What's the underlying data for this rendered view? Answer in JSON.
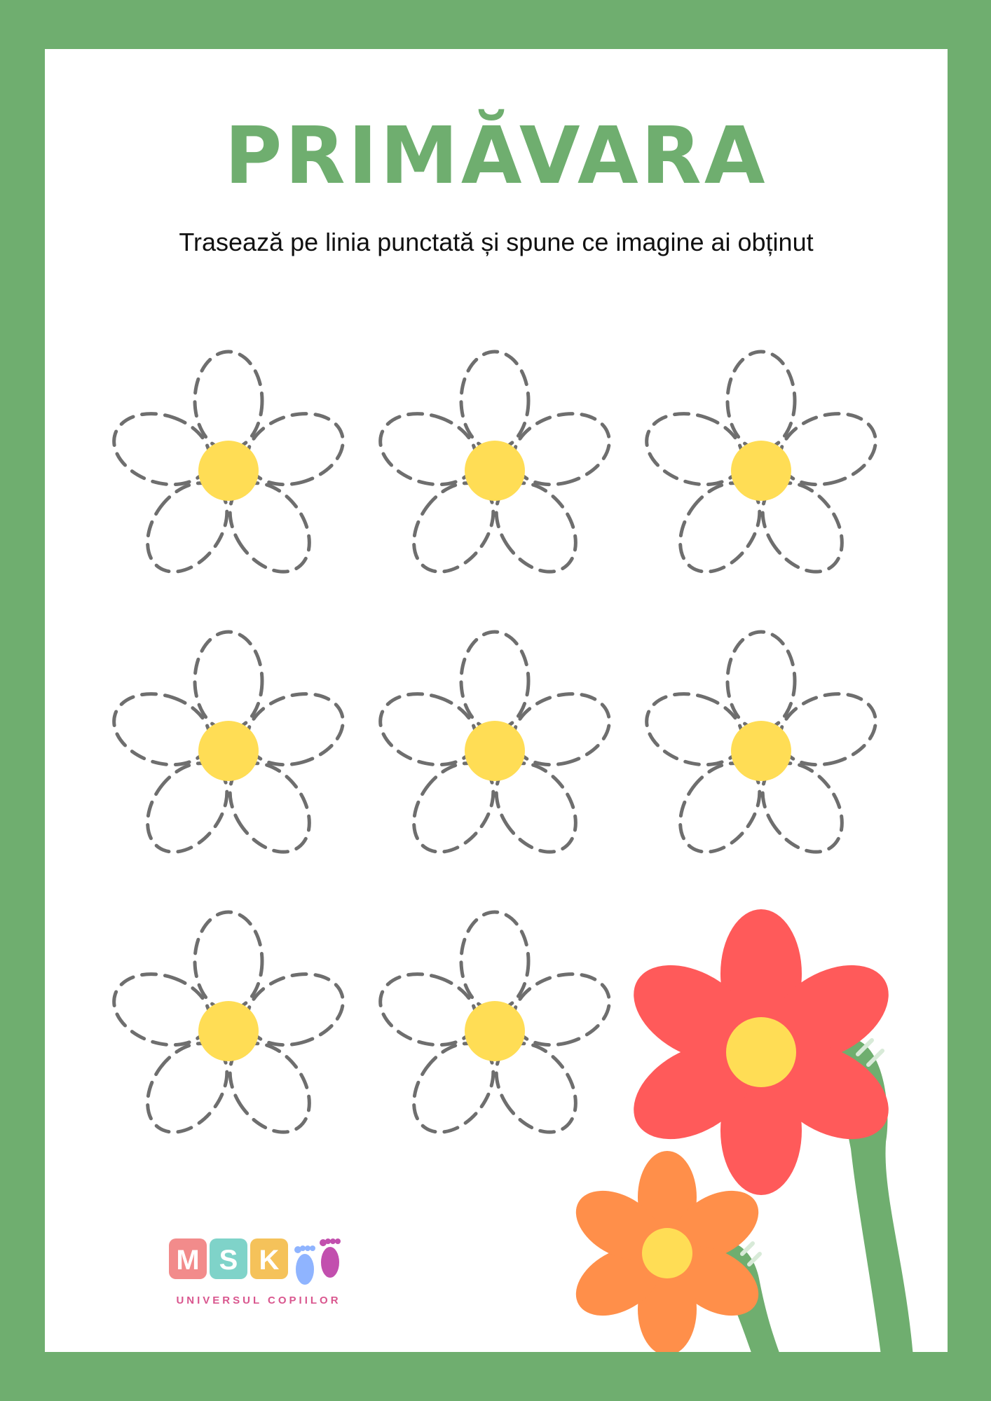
{
  "worksheet": {
    "title": "PRIMĂVARA",
    "instruction": "Trasează pe linia punctată și spune ce imagine ai obținut"
  },
  "tracing_flowers": {
    "count": 8,
    "center_color": "#ffdd55",
    "dash_color": "#6e6e6e"
  },
  "decoration": {
    "large_flower_color": "#ff5a5a",
    "small_flower_color": "#ff8f4a",
    "stem_color": "#6fae6f",
    "center_color": "#ffdd55"
  },
  "logo": {
    "letters": [
      "M",
      "S",
      "K"
    ],
    "letter_colors": [
      "#f28b8b",
      "#7fd3c9",
      "#f5c25a"
    ],
    "tagline": "UNIVERSUL COPIILOR"
  },
  "colors": {
    "frame": "#6fae6f",
    "sheet": "#ffffff",
    "title": "#6fae6f"
  }
}
